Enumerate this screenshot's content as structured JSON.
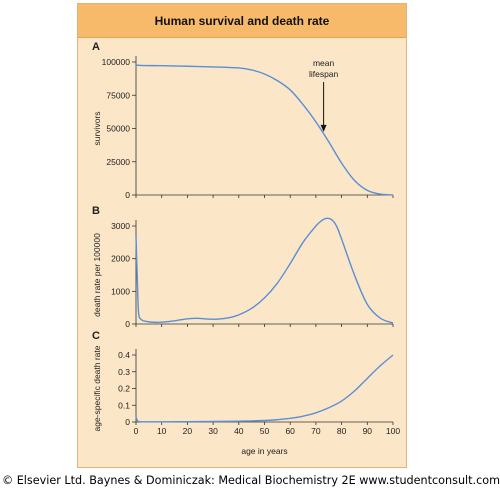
{
  "title": "Human survival and death rate",
  "copyright": "© Elsevier Ltd. Baynes & Dominiczak: Medical Biochemistry 2E www.studentconsult.com",
  "colors": {
    "curve": "#5a8fd6",
    "frame_bg": "#fbe6c8",
    "title_bg": "#f7b96a"
  },
  "chart_data": [
    {
      "type": "line",
      "panel_label": "A",
      "ylabel": "survivors",
      "xlim": [
        0,
        100
      ],
      "ylim": [
        0,
        100000
      ],
      "yticks": [
        0,
        25000,
        50000,
        75000,
        100000
      ],
      "ytick_labels": [
        "0",
        "25000",
        "50000",
        "75000",
        "100000"
      ],
      "annotation": {
        "lines": [
          "mean",
          "lifespan"
        ],
        "x": 73
      },
      "x": [
        0,
        1,
        10,
        20,
        30,
        40,
        45,
        50,
        55,
        60,
        65,
        70,
        75,
        80,
        85,
        90,
        95,
        100
      ],
      "y": [
        99000,
        97500,
        97200,
        96800,
        96300,
        95500,
        94000,
        91000,
        86000,
        79000,
        68000,
        55000,
        40000,
        24000,
        11000,
        3500,
        700,
        0
      ]
    },
    {
      "type": "line",
      "panel_label": "B",
      "ylabel": "death rate per 100000",
      "xlim": [
        0,
        100
      ],
      "ylim": [
        0,
        3000
      ],
      "yticks": [
        0,
        1000,
        2000,
        3000
      ],
      "ytick_labels": [
        "0",
        "1000",
        "2000",
        "3000"
      ],
      "x": [
        0,
        0.5,
        1,
        2,
        4,
        8,
        12,
        16,
        20,
        24,
        28,
        32,
        36,
        40,
        45,
        50,
        55,
        60,
        65,
        70,
        72,
        74,
        76,
        78,
        80,
        85,
        90,
        95,
        100
      ],
      "y": [
        2700,
        1400,
        350,
        140,
        80,
        50,
        70,
        110,
        160,
        175,
        150,
        150,
        190,
        280,
        480,
        800,
        1250,
        1850,
        2500,
        3000,
        3150,
        3230,
        3200,
        3000,
        2600,
        1500,
        600,
        180,
        30
      ]
    },
    {
      "type": "line",
      "panel_label": "C",
      "ylabel": "age-specific death rate",
      "xlabel": "age in years",
      "xlim": [
        0,
        100
      ],
      "ylim": [
        0,
        0.4
      ],
      "yticks": [
        0,
        0.1,
        0.2,
        0.3,
        0.4
      ],
      "ytick_labels": [
        "0",
        "0.1",
        "0.2",
        "0.3",
        "0.4"
      ],
      "xticks": [
        0,
        10,
        20,
        30,
        40,
        50,
        60,
        70,
        80,
        90,
        100
      ],
      "xtick_labels": [
        "0",
        "10",
        "20",
        "30",
        "40",
        "50",
        "60",
        "70",
        "80",
        "90",
        "100"
      ],
      "x": [
        0,
        0.5,
        1,
        3,
        10,
        20,
        30,
        40,
        50,
        55,
        60,
        65,
        70,
        75,
        80,
        85,
        90,
        95,
        100
      ],
      "y": [
        0.028,
        0.01,
        0.003,
        0.001,
        0.001,
        0.002,
        0.003,
        0.005,
        0.009,
        0.014,
        0.022,
        0.035,
        0.055,
        0.085,
        0.125,
        0.185,
        0.26,
        0.335,
        0.4
      ]
    }
  ]
}
